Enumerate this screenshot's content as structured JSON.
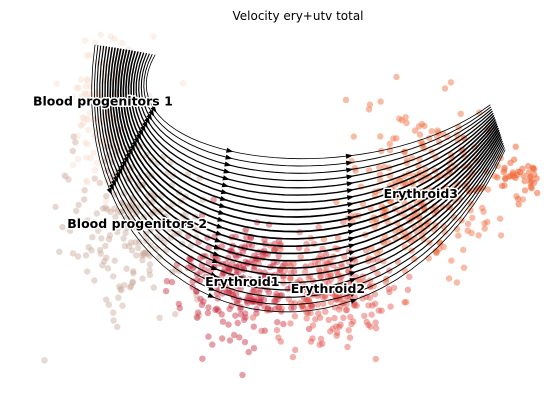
{
  "chart_data": {
    "type": "scatter",
    "title": "Velocity ery+utv total",
    "xlabel": "",
    "ylabel": "",
    "grid": false,
    "legend": "on data",
    "overlay": "velocity streamlines",
    "clusters": [
      {
        "name": "Blood progenitors 1",
        "color": "#f9decf",
        "center": [
          -7.2,
          4.8
        ]
      },
      {
        "name": "Blood progenitors 2",
        "color": "#c9a99a",
        "center": [
          -5.8,
          -0.5
        ]
      },
      {
        "name": "Erythroid1",
        "color": "#c7273c",
        "center": [
          -1.5,
          -3.0
        ]
      },
      {
        "name": "Erythroid2",
        "color": "#e35149",
        "center": [
          2.0,
          -3.3
        ]
      },
      {
        "name": "Erythroid3",
        "color": "#f06a3a",
        "center": [
          5.8,
          0.8
        ]
      }
    ]
  }
}
